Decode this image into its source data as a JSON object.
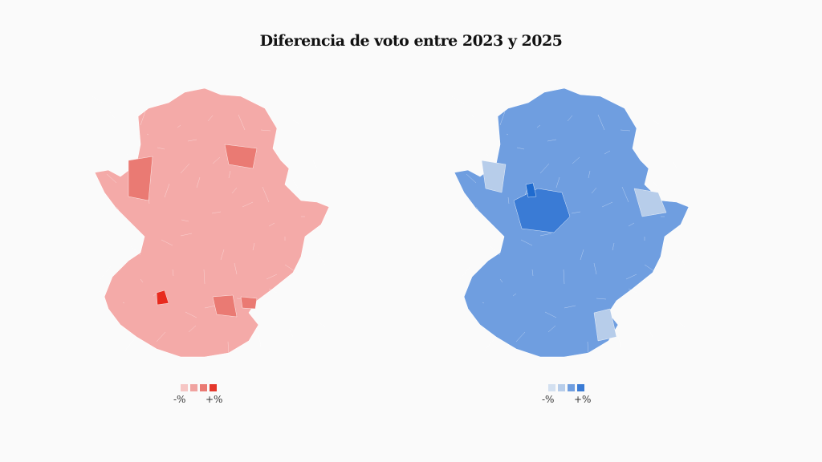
{
  "title": "Diferencia de voto entre 2023 y 2025",
  "maps": [
    {
      "base_color": "#f4aaa8",
      "highlight_color": "#e82a1e",
      "legend_colors": [
        "#f6c6c4",
        "#f0a3a0",
        "#ea7a73",
        "#e4372b"
      ],
      "legend_min": "-%",
      "legend_max": "+%"
    },
    {
      "base_color": "#6f9ee0",
      "highlight_color": "#1f6bcf",
      "legend_colors": [
        "#d3e0f0",
        "#b7cdea",
        "#6f9ee0",
        "#3a7bd5"
      ],
      "legend_min": "-%",
      "legend_max": "+%"
    }
  ]
}
